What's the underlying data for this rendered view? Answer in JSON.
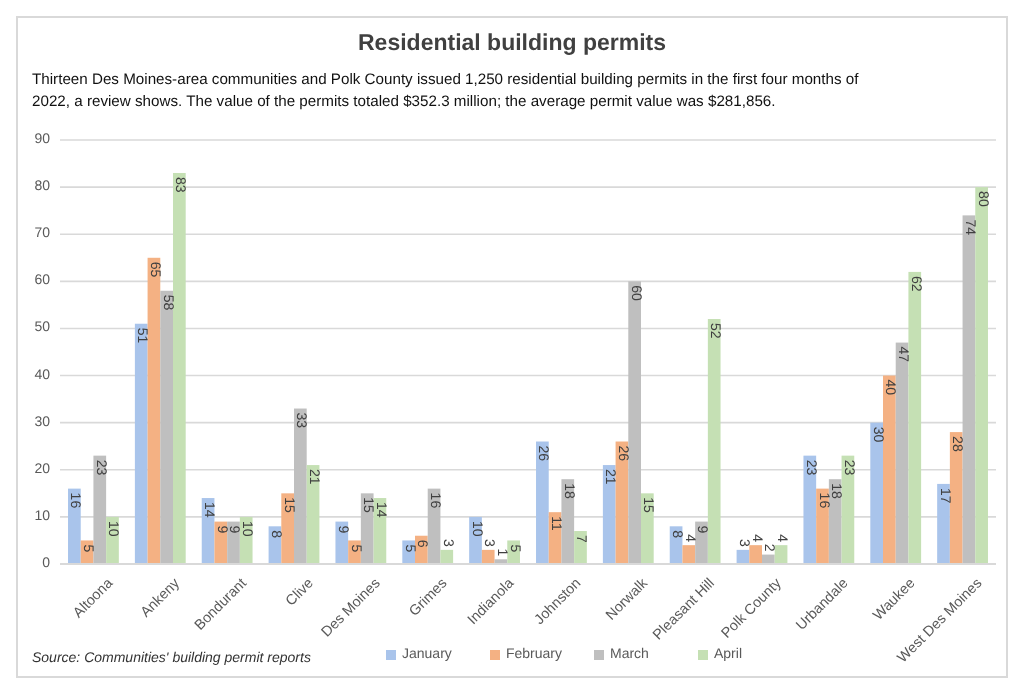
{
  "chart_data": {
    "type": "bar",
    "title": "Residential building permits",
    "subtitle": "Thirteen Des Moines-area communities and Polk County issued 1,250 residential building permits in the first four months of 2022, a review shows. The value of the permits totaled $352.3 million; the average permit value was $281,856.",
    "categories": [
      "Altoona",
      "Ankeny",
      "Bondurant",
      "Clive",
      "Des Moines",
      "Grimes",
      "Indianola",
      "Johnston",
      "Norwalk",
      "Pleasant Hill",
      "Polk County",
      "Urbandale",
      "Waukee",
      "West Des Moines"
    ],
    "series": [
      {
        "name": "January",
        "color": "#a9c4eb",
        "values": [
          16,
          51,
          14,
          8,
          9,
          5,
          10,
          26,
          21,
          8,
          3,
          23,
          30,
          17
        ]
      },
      {
        "name": "February",
        "color": "#f4b183",
        "values": [
          5,
          65,
          9,
          15,
          5,
          6,
          3,
          11,
          26,
          4,
          4,
          16,
          40,
          28
        ]
      },
      {
        "name": "March",
        "color": "#bfbfbf",
        "values": [
          23,
          58,
          9,
          33,
          15,
          16,
          1,
          18,
          60,
          9,
          2,
          18,
          47,
          74
        ]
      },
      {
        "name": "April",
        "color": "#c5e0b4",
        "values": [
          10,
          83,
          10,
          21,
          14,
          3,
          5,
          7,
          15,
          52,
          4,
          23,
          62,
          80
        ]
      }
    ],
    "ylim": [
      0,
      90
    ],
    "yticks": [
      0,
      10,
      20,
      30,
      40,
      50,
      60,
      70,
      80,
      90
    ],
    "grid": "y",
    "legend": "bottom",
    "data_labels": true,
    "annotations": [
      "Source: Communities' building permit reports"
    ]
  }
}
